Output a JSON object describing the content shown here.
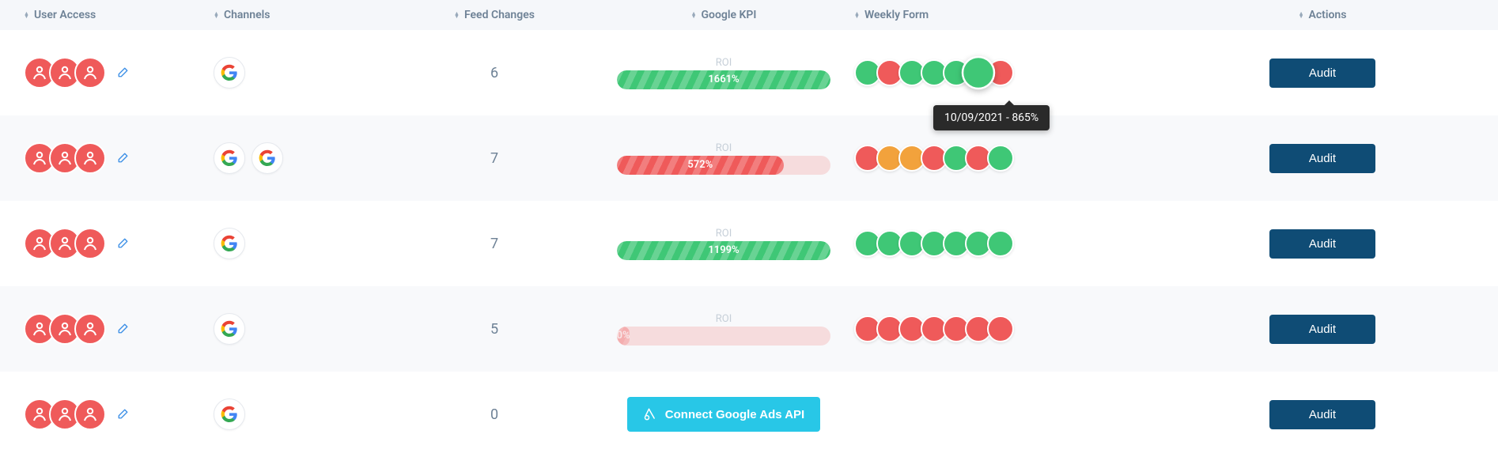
{
  "colors": {
    "green": "#3fc776",
    "red": "#ef5a5a",
    "orange": "#f2a23c",
    "header_bg": "#f5f7fa",
    "alt_row_bg": "#f8f9fb",
    "connect_bg": "#28c7e7",
    "audit_bg": "#0f4c75",
    "text": "#6e8296"
  },
  "columns": {
    "user": "User Access",
    "channels": "Channels",
    "feed": "Feed Changes",
    "kpi": "Google KPI",
    "weekly": "Weekly Form",
    "actions": "Actions"
  },
  "tooltip": "10/09/2021 - 865%",
  "connect_label": "Connect Google Ads API",
  "audit_label": "Audit",
  "kpi_label": "ROI",
  "rows": [
    {
      "users": 3,
      "channels": 1,
      "feed": "6",
      "kpi": {
        "type": "bar",
        "value": "1661%",
        "color": "green",
        "width_pct": 100,
        "track": "none"
      },
      "weekly": [
        "green",
        "red",
        "green",
        "green",
        "green",
        "green",
        "red"
      ],
      "weekly_pop_index": 5,
      "show_tooltip": true
    },
    {
      "users": 3,
      "channels": 2,
      "feed": "7",
      "kpi": {
        "type": "bar",
        "value": "572%",
        "color": "red",
        "width_pct": 78,
        "track": "red"
      },
      "weekly": [
        "red",
        "orange",
        "orange",
        "red",
        "green",
        "red",
        "green"
      ]
    },
    {
      "users": 3,
      "channels": 1,
      "feed": "7",
      "kpi": {
        "type": "bar",
        "value": "1199%",
        "color": "green",
        "width_pct": 100,
        "track": "none"
      },
      "weekly": [
        "green",
        "green",
        "green",
        "green",
        "green",
        "green",
        "green"
      ]
    },
    {
      "users": 3,
      "channels": 1,
      "feed": "5",
      "kpi": {
        "type": "bar",
        "value": "0%",
        "color": "red",
        "width_pct": 6,
        "track": "red",
        "faded": true
      },
      "weekly": [
        "red",
        "red",
        "red",
        "red",
        "red",
        "red",
        "red"
      ]
    },
    {
      "users": 3,
      "channels": 1,
      "feed": "0",
      "kpi": {
        "type": "connect"
      },
      "weekly": []
    }
  ]
}
